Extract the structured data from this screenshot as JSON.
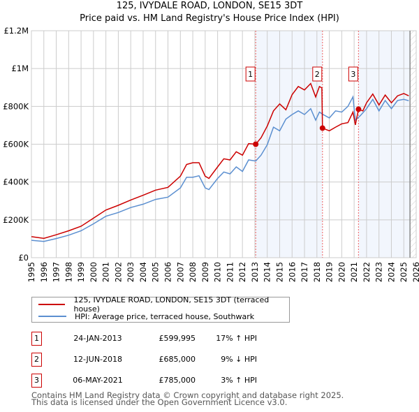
{
  "chart_data": {
    "type": "line",
    "title": "125, IVYDALE ROAD, LONDON, SE15 3DT",
    "subtitle": "Price paid vs. HM Land Registry's House Price Index (HPI)",
    "xlabel": "",
    "ylabel": "",
    "xlim": [
      1995,
      2026
    ],
    "ylim": [
      0,
      1200000
    ],
    "grid": true,
    "y_ticks": [
      {
        "v": 0,
        "label": "£0"
      },
      {
        "v": 200000,
        "label": "£200K"
      },
      {
        "v": 400000,
        "label": "£400K"
      },
      {
        "v": 600000,
        "label": "£600K"
      },
      {
        "v": 800000,
        "label": "£800K"
      },
      {
        "v": 1000000,
        "label": "£1M"
      },
      {
        "v": 1200000,
        "label": "£1.2M"
      }
    ],
    "x_ticks": [
      "1995",
      "1996",
      "1997",
      "1998",
      "1999",
      "2000",
      "2001",
      "2002",
      "2003",
      "2004",
      "2005",
      "2006",
      "2007",
      "2008",
      "2009",
      "2010",
      "2011",
      "2012",
      "2013",
      "2014",
      "2015",
      "2016",
      "2017",
      "2018",
      "2019",
      "2020",
      "2021",
      "2022",
      "2023",
      "2024",
      "2025",
      "2026"
    ],
    "series": [
      {
        "name": "125, IVYDALE ROAD, LONDON, SE15 3DT (terraced house)",
        "color": "#cc0000",
        "x": [
          1995,
          1996,
          1997,
          1998,
          1999,
          2000,
          2001,
          2002,
          2003,
          2004,
          2005,
          2006,
          2007,
          2007.5,
          2008,
          2008.5,
          2009,
          2009.3,
          2010,
          2010.5,
          2011,
          2011.5,
          2012,
          2012.5,
          2013.07,
          2013.5,
          2014,
          2014.5,
          2015,
          2015.5,
          2016,
          2016.5,
          2017,
          2017.5,
          2017.9,
          2018.2,
          2018.4,
          2018.45,
          2019,
          2019.5,
          2020,
          2020.5,
          2020.9,
          2021.1,
          2021.35,
          2021.7,
          2022,
          2022.5,
          2023,
          2023.5,
          2024,
          2024.5,
          2025,
          2025.4
        ],
        "y": [
          111000,
          102000,
          121000,
          142000,
          166000,
          209000,
          252000,
          277000,
          305000,
          330000,
          357000,
          372000,
          431000,
          493000,
          502000,
          502000,
          431000,
          419000,
          480000,
          523000,
          517000,
          560000,
          542000,
          603000,
          599995,
          634000,
          696000,
          776000,
          813000,
          782000,
          862000,
          905000,
          887000,
          921000,
          850000,
          905000,
          898000,
          685000,
          671000,
          690000,
          708000,
          714000,
          770000,
          702000,
          785000,
          776000,
          819000,
          865000,
          807000,
          860000,
          819000,
          856000,
          868000,
          856000
        ]
      },
      {
        "name": "HPI: Average price, terraced house, Southwark",
        "color": "#5b8fd0",
        "x": [
          1995,
          1996,
          1997,
          1998,
          1999,
          2000,
          2001,
          2002,
          2003,
          2004,
          2005,
          2006,
          2007,
          2007.5,
          2008,
          2008.5,
          2009,
          2009.3,
          2010,
          2010.5,
          2011,
          2011.5,
          2012,
          2012.5,
          2013.07,
          2013.5,
          2014,
          2014.5,
          2015,
          2015.5,
          2016,
          2016.5,
          2017,
          2017.5,
          2017.9,
          2018.2,
          2018.5,
          2019,
          2019.5,
          2020,
          2020.5,
          2020.9,
          2021.1,
          2021.5,
          2022,
          2022.5,
          2023,
          2023.5,
          2024,
          2024.5,
          2025,
          2025.4
        ],
        "y": [
          92000,
          86000,
          101000,
          119000,
          142000,
          179000,
          219000,
          239000,
          265000,
          283000,
          308000,
          320000,
          369000,
          425000,
          425000,
          433000,
          369000,
          360000,
          419000,
          453000,
          443000,
          480000,
          456000,
          517000,
          511000,
          542000,
          597000,
          690000,
          671000,
          733000,
          757000,
          776000,
          757000,
          788000,
          727000,
          770000,
          757000,
          739000,
          776000,
          770000,
          800000,
          850000,
          727000,
          751000,
          788000,
          837000,
          776000,
          831000,
          788000,
          831000,
          837000,
          830000
        ]
      }
    ],
    "sales": [
      {
        "id": "1",
        "x": 2013.07,
        "y": 599995
      },
      {
        "id": "2",
        "x": 2018.45,
        "y": 685000
      },
      {
        "id": "3",
        "x": 2021.35,
        "y": 785000
      }
    ],
    "shaded_ranges": [
      [
        2013.07,
        2018.45
      ],
      [
        2021.35,
        2025.5
      ]
    ],
    "forecast_start": 2025.5,
    "legend_placement": "bottom"
  },
  "legend": {
    "items": [
      {
        "label": "125, IVYDALE ROAD, LONDON, SE15 3DT (terraced house)",
        "color": "#cc0000"
      },
      {
        "label": "HPI: Average price, terraced house, Southwark",
        "color": "#5b8fd0"
      }
    ]
  },
  "transactions": [
    {
      "num": "1",
      "date": "24-JAN-2013",
      "price": "£599,995",
      "hpi": "17% ↑ HPI"
    },
    {
      "num": "2",
      "date": "12-JUN-2018",
      "price": "£685,000",
      "hpi": "9% ↓ HPI"
    },
    {
      "num": "3",
      "date": "06-MAY-2021",
      "price": "£785,000",
      "hpi": "3% ↑ HPI"
    }
  ],
  "footer": {
    "line1": "Contains HM Land Registry data © Crown copyright and database right 2025.",
    "line2": "This data is licensed under the Open Government Licence v3.0."
  }
}
